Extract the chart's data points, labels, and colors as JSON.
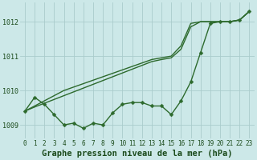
{
  "title": "Graphe pression niveau de la mer (hPa)",
  "x_hours": [
    0,
    1,
    2,
    3,
    4,
    5,
    6,
    7,
    8,
    9,
    10,
    11,
    12,
    13,
    14,
    15,
    16,
    17,
    18,
    19,
    20,
    21,
    22,
    23
  ],
  "line_actual": [
    1009.4,
    1009.8,
    1009.6,
    1009.3,
    1009.0,
    1009.05,
    1008.9,
    1009.05,
    1009.0,
    1009.35,
    1009.6,
    1009.65,
    1009.65,
    1009.55,
    1009.55,
    1009.3,
    1009.7,
    1010.25,
    1011.1,
    1011.95,
    1012.0,
    1012.0,
    1012.05,
    1012.3
  ],
  "line_trend1": [
    1009.4,
    1009.55,
    1009.7,
    1009.85,
    1010.0,
    1010.1,
    1010.2,
    1010.3,
    1010.4,
    1010.5,
    1010.6,
    1010.7,
    1010.8,
    1010.9,
    1010.95,
    1011.0,
    1011.3,
    1011.95,
    1012.0,
    1012.0,
    1012.0,
    1012.0,
    1012.05,
    1012.3
  ],
  "line_trend2": [
    1009.4,
    1009.52,
    1009.63,
    1009.74,
    1009.85,
    1009.96,
    1010.07,
    1010.18,
    1010.29,
    1010.4,
    1010.51,
    1010.62,
    1010.73,
    1010.84,
    1010.9,
    1010.95,
    1011.2,
    1011.85,
    1012.0,
    1012.0,
    1012.0,
    1012.0,
    1012.05,
    1012.3
  ],
  "ylim": [
    1008.6,
    1012.55
  ],
  "yticks": [
    1009,
    1010,
    1011,
    1012
  ],
  "line_color": "#2d6a2d",
  "bg_color": "#cce8e8",
  "grid_color": "#aacccc",
  "label_color": "#1a4a1a",
  "title_fontsize": 7.5,
  "tick_fontsize": 5.5,
  "markersize": 2.5,
  "linewidth": 1.0
}
